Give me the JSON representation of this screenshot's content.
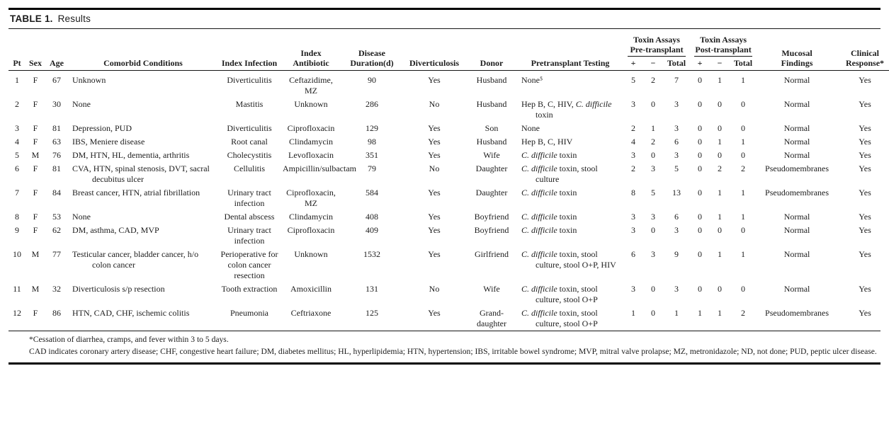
{
  "table": {
    "label": "TABLE 1.",
    "title": "Results"
  },
  "header": {
    "pt": "Pt",
    "sex": "Sex",
    "age": "Age",
    "comorbid": "Comorbid Conditions",
    "infection": "Index Infection",
    "antibiotic": "Index Antibiotic",
    "duration": "Disease Duration(d)",
    "diverticulosis": "Diverticulosis",
    "donor": "Donor",
    "testing": "Pretransplant Testing",
    "group_pre": "Toxin Assays Pre-transplant",
    "group_post": "Toxin Assays Post-transplant",
    "plus": "+",
    "minus": "−",
    "total": "Total",
    "mucosal": "Mucosal Findings",
    "response": "Clinical Response*"
  },
  "rows": [
    {
      "pt": "1",
      "sex": "F",
      "age": "67",
      "comorbid": "Unknown",
      "infection": "Diverticulitis",
      "antibiotic": "Ceftazidime, MZ",
      "duration": "90",
      "diverticulosis": "Yes",
      "donor": "Husband",
      "testing": "None⁵",
      "pre_pos": "5",
      "pre_neg": "2",
      "pre_total": "7",
      "post_pos": "0",
      "post_neg": "1",
      "post_total": "1",
      "mucosal": "Normal",
      "response": "Yes"
    },
    {
      "pt": "2",
      "sex": "F",
      "age": "30",
      "comorbid": "None",
      "infection": "Mastitis",
      "antibiotic": "Unknown",
      "duration": "286",
      "diverticulosis": "No",
      "donor": "Husband",
      "testing": "Hep B, C, HIV, *C. difficile* toxin",
      "pre_pos": "3",
      "pre_neg": "0",
      "pre_total": "3",
      "post_pos": "0",
      "post_neg": "0",
      "post_total": "0",
      "mucosal": "Normal",
      "response": "Yes"
    },
    {
      "pt": "3",
      "sex": "F",
      "age": "81",
      "comorbid": "Depression, PUD",
      "infection": "Diverticulitis",
      "antibiotic": "Ciprofloxacin",
      "duration": "129",
      "diverticulosis": "Yes",
      "donor": "Son",
      "testing": "None",
      "pre_pos": "2",
      "pre_neg": "1",
      "pre_total": "3",
      "post_pos": "0",
      "post_neg": "0",
      "post_total": "0",
      "mucosal": "Normal",
      "response": "Yes"
    },
    {
      "pt": "4",
      "sex": "F",
      "age": "63",
      "comorbid": "IBS, Meniere disease",
      "infection": "Root canal",
      "antibiotic": "Clindamycin",
      "duration": "98",
      "diverticulosis": "Yes",
      "donor": "Husband",
      "testing": "Hep B, C, HIV",
      "pre_pos": "4",
      "pre_neg": "2",
      "pre_total": "6",
      "post_pos": "0",
      "post_neg": "1",
      "post_total": "1",
      "mucosal": "Normal",
      "response": "Yes"
    },
    {
      "pt": "5",
      "sex": "M",
      "age": "76",
      "comorbid": "DM, HTN, HL, dementia, arthritis",
      "infection": "Cholecystitis",
      "antibiotic": "Levofloxacin",
      "duration": "351",
      "diverticulosis": "Yes",
      "donor": "Wife",
      "testing": "*C. difficile* toxin",
      "pre_pos": "3",
      "pre_neg": "0",
      "pre_total": "3",
      "post_pos": "0",
      "post_neg": "0",
      "post_total": "0",
      "mucosal": "Normal",
      "response": "Yes"
    },
    {
      "pt": "6",
      "sex": "F",
      "age": "81",
      "comorbid": "CVA, HTN, spinal stenosis, DVT, sacral decubitus ulcer",
      "infection": "Cellulitis",
      "antibiotic": "Ampicillin/sulbactam",
      "duration": "79",
      "diverticulosis": "No",
      "donor": "Daughter",
      "testing": "*C. difficile* toxin, stool culture",
      "pre_pos": "2",
      "pre_neg": "3",
      "pre_total": "5",
      "post_pos": "0",
      "post_neg": "2",
      "post_total": "2",
      "mucosal": "Pseudomembranes",
      "response": "Yes"
    },
    {
      "pt": "7",
      "sex": "F",
      "age": "84",
      "comorbid": "Breast cancer, HTN, atrial fibrillation",
      "infection": "Urinary tract infection",
      "antibiotic": "Ciprofloxacin, MZ",
      "duration": "584",
      "diverticulosis": "Yes",
      "donor": "Daughter",
      "testing": "*C. difficile* toxin",
      "pre_pos": "8",
      "pre_neg": "5",
      "pre_total": "13",
      "post_pos": "0",
      "post_neg": "1",
      "post_total": "1",
      "mucosal": "Pseudomembranes",
      "response": "Yes"
    },
    {
      "pt": "8",
      "sex": "F",
      "age": "53",
      "comorbid": "None",
      "infection": "Dental abscess",
      "antibiotic": "Clindamycin",
      "duration": "408",
      "diverticulosis": "Yes",
      "donor": "Boyfriend",
      "testing": "*C. difficile* toxin",
      "pre_pos": "3",
      "pre_neg": "3",
      "pre_total": "6",
      "post_pos": "0",
      "post_neg": "1",
      "post_total": "1",
      "mucosal": "Normal",
      "response": "Yes"
    },
    {
      "pt": "9",
      "sex": "F",
      "age": "62",
      "comorbid": "DM, asthma, CAD, MVP",
      "infection": "Urinary tract infection",
      "antibiotic": "Ciprofloxacin",
      "duration": "409",
      "diverticulosis": "Yes",
      "donor": "Boyfriend",
      "testing": "*C. difficile* toxin",
      "pre_pos": "3",
      "pre_neg": "0",
      "pre_total": "3",
      "post_pos": "0",
      "post_neg": "0",
      "post_total": "0",
      "mucosal": "Normal",
      "response": "Yes"
    },
    {
      "pt": "10",
      "sex": "M",
      "age": "77",
      "comorbid": "Testicular cancer, bladder cancer, h/o colon cancer",
      "infection": "Perioperative for colon cancer resection",
      "antibiotic": "Unknown",
      "duration": "1532",
      "diverticulosis": "Yes",
      "donor": "Girlfriend",
      "testing": "*C. difficile* toxin, stool culture, stool O+P, HIV",
      "pre_pos": "6",
      "pre_neg": "3",
      "pre_total": "9",
      "post_pos": "0",
      "post_neg": "1",
      "post_total": "1",
      "mucosal": "Normal",
      "response": "Yes"
    },
    {
      "pt": "11",
      "sex": "M",
      "age": "32",
      "comorbid": "Diverticulosis s/p resection",
      "infection": "Tooth extraction",
      "antibiotic": "Amoxicillin",
      "duration": "131",
      "diverticulosis": "No",
      "donor": "Wife",
      "testing": "*C. difficile* toxin, stool culture, stool O+P",
      "pre_pos": "3",
      "pre_neg": "0",
      "pre_total": "3",
      "post_pos": "0",
      "post_neg": "0",
      "post_total": "0",
      "mucosal": "Normal",
      "response": "Yes"
    },
    {
      "pt": "12",
      "sex": "F",
      "age": "86",
      "comorbid": "HTN, CAD, CHF, ischemic colitis",
      "infection": "Pneumonia",
      "antibiotic": "Ceftriaxone",
      "duration": "125",
      "diverticulosis": "Yes",
      "donor": "Grand-daughter",
      "testing": "*C. difficile* toxin, stool culture, stool O+P",
      "pre_pos": "1",
      "pre_neg": "0",
      "pre_total": "1",
      "post_pos": "1",
      "post_neg": "1",
      "post_total": "2",
      "mucosal": "Pseudomembranes",
      "response": "Yes"
    }
  ],
  "footnotes": {
    "line1": "*Cessation of diarrhea, cramps, and fever within 3 to 5 days.",
    "line2": "CAD indicates coronary artery disease; CHF, congestive heart failure; DM, diabetes mellitus; HL, hyperlipidemia; HTN, hypertension; IBS, irritable bowel syndrome; MVP, mitral valve prolapse; MZ, metronidazole; ND, not done; PUD, peptic ulcer disease."
  }
}
